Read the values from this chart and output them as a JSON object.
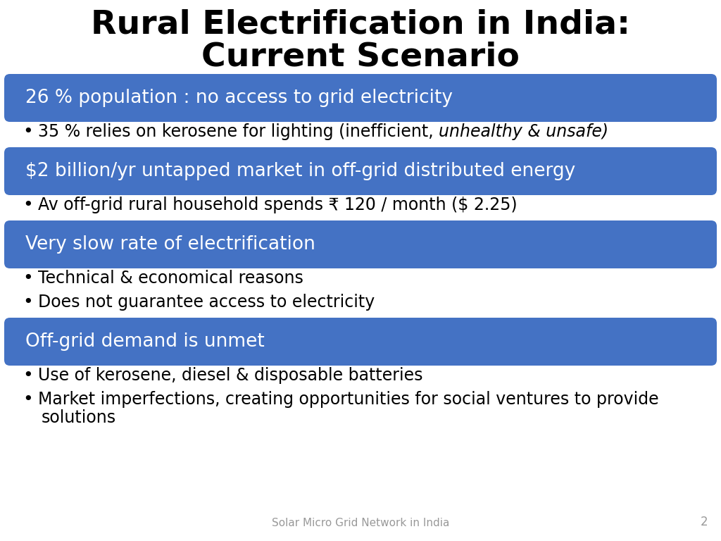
{
  "title_line1": "Rural Electrification in India:",
  "title_line2": "Current Scenario",
  "title_fontsize": 34,
  "title_color": "#000000",
  "background_color": "#ffffff",
  "banner_color": "#4472C4",
  "banner_text_color": "#ffffff",
  "bullet_text_color": "#000000",
  "sections": [
    {
      "banner": "26 % population : no access to grid electricity",
      "bullets": [
        {
          "normal": "35 % relies on kerosene for lighting (inefficient, ",
          "italic": "unhealthy & unsafe)"
        }
      ]
    },
    {
      "banner": "$2 billion/yr untapped market in off-grid distributed energy",
      "bullets": [
        {
          "normal": "Av off-grid rural household spends ₹ 120 / month ($ 2.25)",
          "italic": ""
        }
      ]
    },
    {
      "banner": "Very slow rate of electrification",
      "bullets": [
        {
          "normal": "Technical & economical reasons",
          "italic": ""
        },
        {
          "normal": "Does not guarantee access to electricity",
          "italic": ""
        }
      ]
    },
    {
      "banner": "Off-grid demand is unmet",
      "bullets": [
        {
          "normal": "Use of kerosene, diesel & disposable batteries",
          "italic": ""
        },
        {
          "normal": "Market imperfections, creating opportunities for social ventures to provide",
          "italic": "",
          "continuation": "solutions"
        }
      ]
    }
  ],
  "footer_text": "Solar Micro Grid Network in India",
  "page_number": "2",
  "banner_fontsize": 19,
  "bullet_fontsize": 17,
  "title_fontsize2": 34
}
